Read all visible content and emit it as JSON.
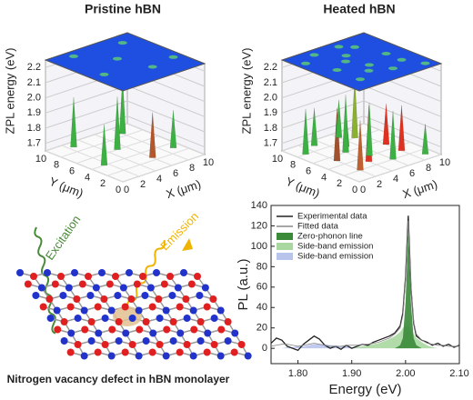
{
  "chart_data": [
    {
      "type": "spike3d",
      "title": "Pristine hBN",
      "xlabel": "X (μm)",
      "ylabel": "Y (μm)",
      "zlabel": "ZPL energy (eV)",
      "xlim": [
        0,
        10
      ],
      "ylim": [
        0,
        10
      ],
      "zlim": [
        1.65,
        2.25
      ],
      "xticks": [
        0,
        2,
        4,
        6,
        8,
        10
      ],
      "yticks": [
        0,
        2,
        4,
        6,
        8,
        10
      ],
      "zticks": [
        1.7,
        1.8,
        1.9,
        {
          "value": 2,
          "label": "2.0"
        },
        2.1,
        2.2
      ],
      "x": [
        2.5,
        8,
        6,
        9,
        1.5,
        5
      ],
      "y": [
        9,
        8.5,
        2.5,
        3,
        4,
        6
      ],
      "values": [
        1.98,
        2.02,
        1.95,
        1.9,
        1.92,
        2.0
      ],
      "colors": [
        "#3cb043",
        "#3cb043",
        "#b5552b",
        "#3cb043",
        "#3cb043",
        "#3cb043"
      ],
      "plane_color": "#1f4fe0"
    },
    {
      "type": "spike3d",
      "title": "Heated hBN",
      "xlabel": "X (μm)",
      "ylabel": "Y (μm)",
      "zlabel": "ZPL energy (eV)",
      "xlim": [
        0,
        10
      ],
      "ylim": [
        0,
        10
      ],
      "zlim": [
        1.65,
        2.25
      ],
      "xticks": [
        0,
        2,
        4,
        6,
        8,
        10
      ],
      "yticks": [
        0,
        2,
        4,
        6,
        8,
        10
      ],
      "zticks": [
        1.7,
        1.8,
        1.9,
        {
          "value": 2,
          "label": "2.0"
        },
        2.1,
        2.2
      ],
      "x": [
        1,
        2,
        3,
        4,
        5,
        6,
        7,
        8,
        9,
        2,
        4,
        6,
        8,
        5
      ],
      "y": [
        8,
        5,
        9,
        3,
        7,
        2,
        8,
        5,
        1,
        2,
        6,
        9,
        3,
        4
      ],
      "values": [
        1.95,
        2.0,
        1.9,
        2.02,
        1.88,
        1.97,
        2.05,
        1.92,
        1.85,
        1.98,
        2.03,
        1.9,
        1.95,
        2.0
      ],
      "colors": [
        "#3cb043",
        "#a0522d",
        "#3cb043",
        "#e03020",
        "#3cb043",
        "#3cb043",
        "#8ab030",
        "#e03020",
        "#3cb043",
        "#c06030",
        "#3cb043",
        "#3cb043",
        "#e03020",
        "#3cb043"
      ],
      "plane_color": "#1f4fe0"
    },
    {
      "type": "line",
      "xlabel": "Energy (eV)",
      "ylabel": "PL (a.u.)",
      "legend": "upper left",
      "xlim": [
        1.75,
        2.1
      ],
      "ylim": [
        -15,
        140
      ],
      "xticks": [
        {
          "value": 1.8,
          "label": "1.80"
        },
        {
          "value": 1.9,
          "label": "1.90"
        },
        {
          "value": 2,
          "label": "2.00"
        },
        {
          "value": 2.1,
          "label": "2.10"
        }
      ],
      "yticks": [
        0,
        20,
        40,
        60,
        80,
        100,
        120,
        140
      ],
      "x": [
        1.75,
        1.76,
        1.77,
        1.78,
        1.79,
        1.8,
        1.81,
        1.82,
        1.83,
        1.84,
        1.85,
        1.86,
        1.87,
        1.88,
        1.89,
        1.9,
        1.91,
        1.92,
        1.93,
        1.94,
        1.95,
        1.96,
        1.97,
        1.98,
        1.99,
        1.995,
        2.0,
        2.005,
        2.01,
        2.015,
        2.02,
        2.03,
        2.04,
        2.05,
        2.06,
        2.07,
        2.08,
        2.09,
        2.1
      ],
      "series": [
        {
          "name": "Side-band emission",
          "color": "#b8c4ec",
          "kind": "area",
          "values": [
            0,
            0,
            0,
            1,
            1,
            2,
            2,
            3,
            4,
            4,
            4,
            3,
            3,
            2,
            2,
            1,
            1,
            1,
            0,
            0,
            0,
            0,
            0,
            0,
            0,
            0,
            0,
            0,
            0,
            0,
            0,
            0,
            0,
            0,
            0,
            0,
            0,
            0,
            0
          ]
        },
        {
          "name": "Side-band emission",
          "color": "#a8d8a0",
          "kind": "area",
          "values": [
            0,
            0,
            0,
            0,
            0,
            0,
            0,
            0,
            0,
            0,
            0,
            0,
            0,
            0,
            0,
            0,
            1,
            2,
            3,
            4,
            5,
            7,
            9,
            12,
            16,
            20,
            22,
            22,
            18,
            14,
            10,
            6,
            3,
            1,
            0,
            0,
            0,
            0,
            0
          ]
        },
        {
          "name": "Zero-phonon line",
          "color": "#3a8a3a",
          "kind": "area",
          "values": [
            0,
            0,
            0,
            0,
            0,
            0,
            0,
            0,
            0,
            0,
            0,
            0,
            0,
            0,
            0,
            0,
            0,
            0,
            0,
            0,
            0,
            0,
            0,
            0,
            3,
            10,
            45,
            115,
            45,
            10,
            3,
            0,
            0,
            0,
            0,
            0,
            0,
            0,
            0
          ]
        },
        {
          "name": "Experimental data",
          "color": "#222222",
          "kind": "line",
          "values": [
            5,
            10,
            8,
            2,
            0,
            -2,
            4,
            8,
            12,
            9,
            3,
            0,
            2,
            -1,
            3,
            0,
            2,
            4,
            3,
            6,
            8,
            10,
            12,
            15,
            22,
            35,
            70,
            130,
            60,
            25,
            12,
            8,
            6,
            3,
            5,
            2,
            4,
            1,
            3
          ]
        },
        {
          "name": "Fitted data",
          "color": "#888888",
          "kind": "line",
          "values": [
            2,
            3,
            4,
            4,
            3,
            2,
            3,
            4,
            5,
            4,
            3,
            2,
            2,
            2,
            3,
            3,
            3,
            4,
            4,
            5,
            6,
            8,
            10,
            14,
            20,
            32,
            68,
            125,
            62,
            26,
            14,
            8,
            5,
            4,
            3,
            3,
            2,
            2,
            2
          ]
        }
      ]
    }
  ],
  "diagram": {
    "excitation": "Excitation",
    "emission": "Emission",
    "caption": "Nitrogen vacancy defect in hBN monolayer"
  }
}
